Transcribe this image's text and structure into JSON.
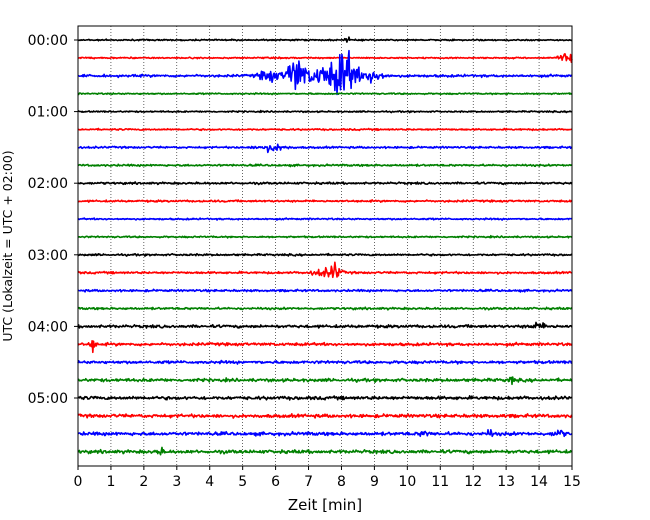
{
  "chart_data": {
    "type": "line",
    "title": "",
    "xlabel": "Zeit  [min]",
    "ylabel": "UTC (Lokalzeit = UTC + 02:00)",
    "xlim": [
      0,
      15
    ],
    "x_ticks": [
      "0",
      "1",
      "2",
      "3",
      "4",
      "5",
      "6",
      "7",
      "8",
      "9",
      "10",
      "11",
      "12",
      "13",
      "14",
      "15"
    ],
    "y_ticks": [
      {
        "label": "00:00",
        "row": 0
      },
      {
        "label": "01:00",
        "row": 4
      },
      {
        "label": "02:00",
        "row": 8
      },
      {
        "label": "03:00",
        "row": 12
      },
      {
        "label": "04:00",
        "row": 16
      },
      {
        "label": "05:00",
        "row": 20
      }
    ],
    "grid": "vertical dotted at each minute",
    "traces": [
      {
        "start": "00:00",
        "color": "#000000",
        "noise": 0.15,
        "events": [
          [
            8.2,
            0.1,
            0.4
          ]
        ]
      },
      {
        "start": "00:15",
        "color": "#ff0000",
        "noise": 0.15,
        "events": [
          [
            14.9,
            0.3,
            0.9
          ]
        ]
      },
      {
        "start": "00:30",
        "color": "#0000ff",
        "noise": 0.25,
        "events": [
          [
            6.6,
            0.25,
            3.5
          ],
          [
            8.1,
            0.35,
            4.2
          ],
          [
            7.5,
            0.8,
            1.8
          ],
          [
            9.0,
            0.25,
            1.5
          ],
          [
            5.8,
            0.3,
            1.2
          ]
        ]
      },
      {
        "start": "00:45",
        "color": "#008000",
        "noise": 0.15,
        "events": []
      },
      {
        "start": "01:00",
        "color": "#000000",
        "noise": 0.15,
        "events": []
      },
      {
        "start": "01:15",
        "color": "#ff0000",
        "noise": 0.17,
        "events": []
      },
      {
        "start": "01:30",
        "color": "#0000ff",
        "noise": 0.2,
        "events": [
          [
            5.9,
            0.4,
            0.7
          ]
        ]
      },
      {
        "start": "01:45",
        "color": "#008000",
        "noise": 0.2,
        "events": []
      },
      {
        "start": "02:00",
        "color": "#000000",
        "noise": 0.22,
        "events": []
      },
      {
        "start": "02:15",
        "color": "#ff0000",
        "noise": 0.2,
        "events": []
      },
      {
        "start": "02:30",
        "color": "#0000ff",
        "noise": 0.17,
        "events": []
      },
      {
        "start": "02:45",
        "color": "#008000",
        "noise": 0.17,
        "events": []
      },
      {
        "start": "03:00",
        "color": "#000000",
        "noise": 0.2,
        "events": []
      },
      {
        "start": "03:15",
        "color": "#ff0000",
        "noise": 0.22,
        "events": [
          [
            7.8,
            0.15,
            1.5
          ],
          [
            7.5,
            0.4,
            0.7
          ]
        ]
      },
      {
        "start": "03:30",
        "color": "#0000ff",
        "noise": 0.22,
        "events": []
      },
      {
        "start": "03:45",
        "color": "#008000",
        "noise": 0.22,
        "events": []
      },
      {
        "start": "04:00",
        "color": "#000000",
        "noise": 0.3,
        "events": [
          [
            14.0,
            0.3,
            0.5
          ]
        ]
      },
      {
        "start": "04:15",
        "color": "#ff0000",
        "noise": 0.3,
        "events": [
          [
            0.45,
            0.08,
            1.6
          ]
        ]
      },
      {
        "start": "04:30",
        "color": "#0000ff",
        "noise": 0.3,
        "events": []
      },
      {
        "start": "04:45",
        "color": "#008000",
        "noise": 0.32,
        "events": [
          [
            13.15,
            0.05,
            1.5
          ]
        ]
      },
      {
        "start": "05:00",
        "color": "#000000",
        "noise": 0.35,
        "events": []
      },
      {
        "start": "05:15",
        "color": "#ff0000",
        "noise": 0.35,
        "events": []
      },
      {
        "start": "05:30",
        "color": "#0000ff",
        "noise": 0.35,
        "events": [
          [
            10.5,
            0.1,
            0.8
          ],
          [
            12.5,
            0.1,
            0.7
          ],
          [
            14.6,
            0.15,
            0.8
          ]
        ]
      },
      {
        "start": "05:45",
        "color": "#008000",
        "noise": 0.35,
        "events": [
          [
            2.5,
            0.1,
            0.7
          ]
        ]
      }
    ]
  }
}
